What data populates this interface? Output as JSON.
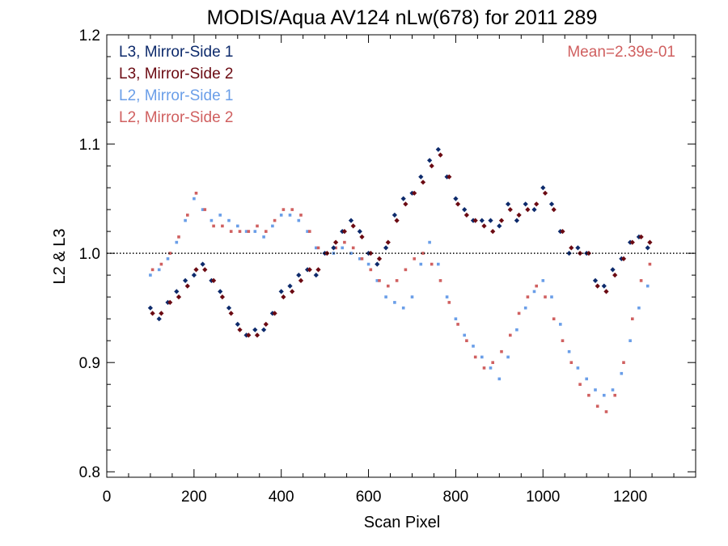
{
  "chart_data": {
    "type": "scatter",
    "title": "MODIS/Aqua AV124 nLw(678) for 2011 289",
    "xlabel": "Scan Pixel",
    "ylabel": "L2 & L3",
    "xlim": [
      0,
      1350
    ],
    "ylim": [
      0.795,
      1.2
    ],
    "xticks": [
      0,
      200,
      400,
      600,
      800,
      1000,
      1200
    ],
    "xtick_labels": [
      "0",
      "200",
      "400",
      "600",
      "800",
      "1000",
      "1200"
    ],
    "yticks": [
      0.8,
      0.9,
      1.0,
      1.1,
      1.2
    ],
    "ytick_labels": [
      "0.8",
      "0.9",
      "1.0",
      "1.1",
      "1.2"
    ],
    "reference_line": 1.0,
    "grid": false,
    "legend_position": "top-left",
    "annotation": "Mean=2.39e-01",
    "series": [
      {
        "name": "L3, Mirror-Side 1",
        "color": "#0d2a6b",
        "x": [
          100,
          120,
          140,
          160,
          180,
          200,
          220,
          240,
          260,
          280,
          300,
          320,
          340,
          360,
          380,
          400,
          420,
          440,
          460,
          480,
          500,
          520,
          540,
          560,
          580,
          600,
          620,
          640,
          660,
          680,
          700,
          720,
          740,
          760,
          780,
          800,
          820,
          840,
          860,
          880,
          900,
          920,
          940,
          960,
          980,
          1000,
          1020,
          1040,
          1060,
          1080,
          1100,
          1120,
          1140,
          1160,
          1180,
          1200,
          1220,
          1240
        ],
        "y": [
          0.95,
          0.94,
          0.955,
          0.965,
          0.975,
          0.98,
          0.99,
          0.975,
          0.965,
          0.95,
          0.935,
          0.925,
          0.93,
          0.93,
          0.945,
          0.965,
          0.97,
          0.98,
          0.985,
          0.98,
          1.0,
          1.005,
          1.02,
          1.03,
          1.02,
          1.0,
          0.99,
          1.005,
          1.035,
          1.05,
          1.055,
          1.07,
          1.085,
          1.095,
          1.07,
          1.05,
          1.04,
          1.03,
          1.03,
          1.03,
          1.025,
          1.045,
          1.03,
          1.045,
          1.04,
          1.06,
          1.045,
          1.02,
          1.0,
          1.005,
          1.0,
          0.975,
          0.97,
          0.985,
          0.995,
          1.01,
          1.015,
          1.005
        ]
      },
      {
        "name": "L3, Mirror-Side 2",
        "color": "#6b0a12",
        "x": [
          105,
          125,
          145,
          165,
          185,
          205,
          225,
          245,
          265,
          285,
          305,
          325,
          345,
          365,
          385,
          405,
          425,
          445,
          465,
          485,
          505,
          525,
          545,
          565,
          585,
          605,
          625,
          645,
          665,
          685,
          705,
          725,
          745,
          765,
          785,
          805,
          825,
          845,
          865,
          885,
          905,
          925,
          945,
          965,
          985,
          1005,
          1025,
          1045,
          1065,
          1085,
          1105,
          1125,
          1145,
          1165,
          1185,
          1205,
          1225,
          1245
        ],
        "y": [
          0.945,
          0.945,
          0.955,
          0.96,
          0.97,
          0.985,
          0.985,
          0.975,
          0.96,
          0.945,
          0.93,
          0.925,
          0.925,
          0.935,
          0.945,
          0.96,
          0.965,
          0.975,
          0.985,
          0.985,
          1.0,
          1.01,
          1.02,
          1.025,
          1.015,
          1.0,
          0.995,
          1.01,
          1.03,
          1.045,
          1.055,
          1.065,
          1.08,
          1.09,
          1.07,
          1.045,
          1.035,
          1.03,
          1.025,
          1.02,
          1.03,
          1.04,
          1.035,
          1.04,
          1.045,
          1.055,
          1.04,
          1.02,
          1.005,
          1.0,
          1.0,
          0.97,
          0.965,
          0.98,
          0.995,
          1.01,
          1.015,
          1.01
        ]
      },
      {
        "name": "L2, Mirror-Side 1",
        "color": "#6a9ee8",
        "x": [
          100,
          120,
          140,
          160,
          180,
          200,
          220,
          240,
          260,
          280,
          300,
          320,
          340,
          360,
          380,
          400,
          420,
          440,
          460,
          480,
          500,
          520,
          540,
          560,
          580,
          600,
          620,
          640,
          660,
          680,
          700,
          720,
          740,
          760,
          780,
          800,
          820,
          840,
          860,
          880,
          900,
          920,
          940,
          960,
          980,
          1000,
          1020,
          1040,
          1060,
          1080,
          1100,
          1120,
          1140,
          1160,
          1180,
          1200,
          1220,
          1240
        ],
        "y": [
          0.98,
          0.985,
          0.995,
          1.01,
          1.03,
          1.05,
          1.04,
          1.03,
          1.035,
          1.03,
          1.025,
          1.02,
          1.02,
          1.015,
          1.025,
          1.035,
          1.035,
          1.03,
          1.02,
          1.005,
          1.0,
          1.0,
          1.005,
          1.0,
          0.995,
          0.99,
          0.975,
          0.96,
          0.955,
          0.95,
          0.96,
          0.99,
          1.01,
          0.99,
          0.96,
          0.94,
          0.925,
          0.915,
          0.905,
          0.895,
          0.885,
          0.905,
          0.93,
          0.95,
          0.965,
          0.975,
          0.96,
          0.935,
          0.91,
          0.895,
          0.885,
          0.875,
          0.87,
          0.875,
          0.89,
          0.92,
          0.95,
          0.97
        ]
      },
      {
        "name": "L2, Mirror-Side 2",
        "color": "#d06060",
        "x": [
          105,
          125,
          145,
          165,
          185,
          205,
          225,
          245,
          265,
          285,
          305,
          325,
          345,
          365,
          385,
          405,
          425,
          445,
          465,
          485,
          505,
          525,
          545,
          565,
          585,
          605,
          625,
          645,
          665,
          685,
          705,
          725,
          745,
          765,
          785,
          805,
          825,
          845,
          865,
          885,
          905,
          925,
          945,
          965,
          985,
          1005,
          1025,
          1045,
          1065,
          1085,
          1105,
          1125,
          1145,
          1165,
          1185,
          1205,
          1225,
          1245
        ],
        "y": [
          0.985,
          0.99,
          1.0,
          1.015,
          1.035,
          1.055,
          1.04,
          1.025,
          1.025,
          1.02,
          1.02,
          1.02,
          1.025,
          1.02,
          1.03,
          1.04,
          1.04,
          1.035,
          1.02,
          1.005,
          1.0,
          1.005,
          1.01,
          1.005,
          0.995,
          0.985,
          0.975,
          0.97,
          0.975,
          0.985,
          0.995,
          1.0,
          0.99,
          0.975,
          0.955,
          0.935,
          0.92,
          0.905,
          0.895,
          0.9,
          0.91,
          0.925,
          0.945,
          0.96,
          0.97,
          0.96,
          0.94,
          0.92,
          0.9,
          0.88,
          0.87,
          0.86,
          0.855,
          0.87,
          0.9,
          0.94,
          0.975,
          0.99
        ]
      }
    ]
  }
}
